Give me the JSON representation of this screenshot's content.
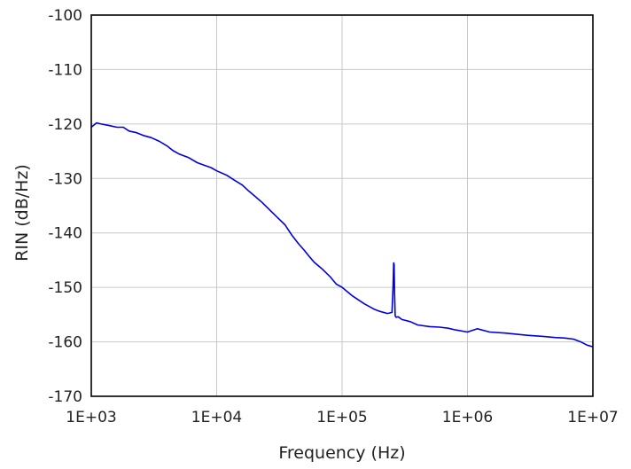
{
  "chart_data": {
    "type": "line",
    "title": "",
    "xlabel": "Frequency (Hz)",
    "ylabel": "RIN (dB/Hz)",
    "xscale": "log",
    "xlim": [
      1000,
      10000000
    ],
    "ylim": [
      -170,
      -100
    ],
    "x_ticks": [
      1000,
      10000,
      100000,
      1000000,
      10000000
    ],
    "x_tick_labels": [
      "1E+03",
      "1E+04",
      "1E+05",
      "1E+06",
      "1E+07"
    ],
    "y_ticks": [
      -100,
      -110,
      -120,
      -130,
      -140,
      -150,
      -160,
      -170
    ],
    "y_tick_labels": [
      "-100",
      "-110",
      "-120",
      "-130",
      "-140",
      "-150",
      "-160",
      "-170"
    ],
    "grid": true,
    "legend": "none",
    "series": [
      {
        "color": "#0000dd",
        "x": [
          1000,
          1100,
          1200,
          1400,
          1600,
          1800,
          2000,
          2300,
          2600,
          3000,
          3500,
          4000,
          4500,
          5000,
          6000,
          7000,
          8000,
          9000,
          10000,
          12000,
          14000,
          16000,
          18000,
          20000,
          23000,
          26000,
          30000,
          35000,
          40000,
          45000,
          50000,
          55000,
          60000,
          70000,
          80000,
          90000,
          100000,
          120000,
          150000,
          180000,
          200000,
          230000,
          250000,
          255000,
          258000,
          260000,
          262000,
          265000,
          270000,
          280000,
          300000,
          350000,
          400000,
          500000,
          600000,
          700000,
          800000,
          1000000,
          1200000,
          1500000,
          2000000,
          3000000,
          4000000,
          5000000,
          6000000,
          7000000,
          8000000,
          9000000,
          10000000
        ],
        "values": [
          -120.6,
          -119.8,
          -120.0,
          -120.3,
          -120.6,
          -120.6,
          -121.3,
          -121.6,
          -122.1,
          -122.5,
          -123.2,
          -124.0,
          -124.9,
          -125.5,
          -126.2,
          -127.1,
          -127.6,
          -128.0,
          -128.6,
          -129.4,
          -130.4,
          -131.2,
          -132.3,
          -133.2,
          -134.4,
          -135.6,
          -137.0,
          -138.5,
          -140.5,
          -142.0,
          -143.2,
          -144.4,
          -145.4,
          -146.7,
          -148.0,
          -149.4,
          -150.0,
          -151.5,
          -153.0,
          -154.0,
          -154.4,
          -154.8,
          -154.6,
          -150.0,
          -145.5,
          -145.8,
          -151.0,
          -155.2,
          -155.5,
          -155.4,
          -155.9,
          -156.3,
          -156.9,
          -157.2,
          -157.3,
          -157.5,
          -157.8,
          -158.2,
          -157.6,
          -158.2,
          -158.4,
          -158.8,
          -159.0,
          -159.2,
          -159.3,
          -159.5,
          -160.0,
          -160.6,
          -160.9
        ]
      }
    ]
  }
}
